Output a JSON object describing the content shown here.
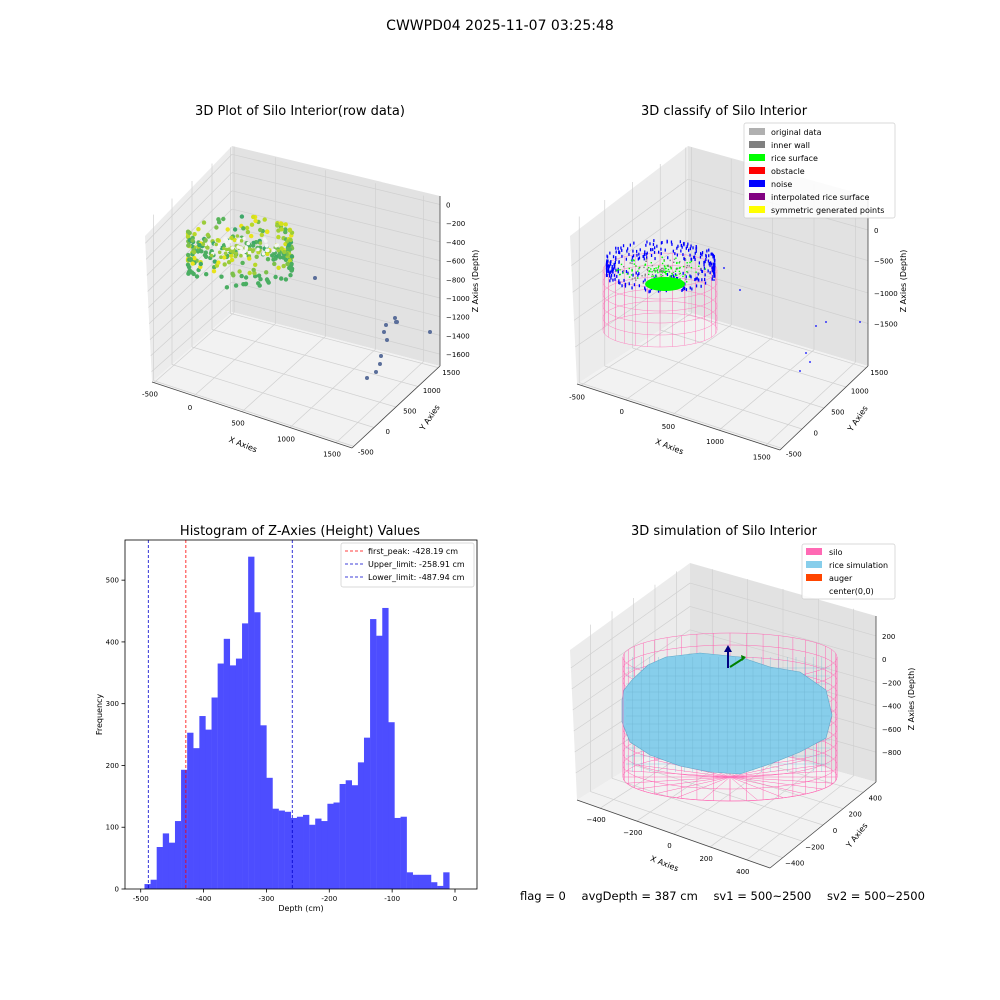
{
  "suptitle": "CWWPD04 2025-11-07 03:25:48",
  "status": {
    "flag": "flag = 0",
    "avg_depth": "avgDepth = 387 cm",
    "sv1": "sv1 = 500~2500",
    "sv2": "sv2 = 500~2500"
  },
  "colors": {
    "original": "#b0b0b0",
    "inner_wall": "#808080",
    "rice_surface": "#00ff00",
    "obstacle": "#ff0000",
    "noise": "#0000ff",
    "interpolated": "#800080",
    "symmetric": "#ffff00",
    "silo": "#ff69b4",
    "rice_sim": "#87ceeb",
    "auger": "#ff4500",
    "hist_bar": "#4d4dff"
  },
  "chart_data": [
    {
      "type": "scatter3d",
      "title": "3D Plot of Silo Interior(row data)",
      "xlabel": "X Axies",
      "ylabel": "Y Axies",
      "zlabel": "Z Axies (Depth)",
      "x_ticks": [
        "-500",
        "0",
        "500",
        "1000",
        "1500"
      ],
      "y_ticks": [
        "-500",
        "0",
        "500",
        "1000",
        "1500"
      ],
      "z_ticks": [
        "0",
        "−200",
        "−400",
        "−600",
        "−800",
        "−1000",
        "−1200",
        "−1400",
        "−1600"
      ]
    },
    {
      "type": "scatter3d",
      "title": "3D classify of Silo Interior",
      "xlabel": "X Axies",
      "ylabel": "Y Axies",
      "zlabel": "Z Axies (Depth)",
      "x_ticks": [
        "-500",
        "0",
        "500",
        "1000",
        "1500"
      ],
      "y_ticks": [
        "-500",
        "0",
        "500",
        "1000",
        "1500"
      ],
      "z_ticks": [
        "0",
        "−500",
        "−1000",
        "−1500"
      ],
      "legend": [
        {
          "label": "original data",
          "color": "#b0b0b0"
        },
        {
          "label": "inner wall",
          "color": "#808080"
        },
        {
          "label": "rice surface",
          "color": "#00ff00"
        },
        {
          "label": "obstacle",
          "color": "#ff0000"
        },
        {
          "label": "noise",
          "color": "#0000ff"
        },
        {
          "label": "interpolated rice surface",
          "color": "#800080"
        },
        {
          "label": "symmetric generated points",
          "color": "#ffff00"
        }
      ],
      "legend_position": "top-right"
    },
    {
      "type": "bar",
      "title": "Histogram of Z-Axies (Height) Values",
      "xlabel": "Depth (cm)",
      "ylabel": "Frequency",
      "xlim": [
        -525,
        35
      ],
      "ylim": [
        0,
        565
      ],
      "x_ticks": [
        -500,
        -400,
        -300,
        -200,
        -100,
        0
      ],
      "y_ticks": [
        0,
        100,
        200,
        300,
        400,
        500
      ],
      "bin_start": -494,
      "bin_width": 9.7,
      "values": [
        8,
        15,
        68,
        90,
        75,
        110,
        193,
        253,
        228,
        280,
        258,
        310,
        365,
        405,
        362,
        373,
        430,
        538,
        448,
        265,
        180,
        130,
        127,
        125,
        115,
        117,
        120,
        104,
        114,
        110,
        138,
        140,
        170,
        176,
        168,
        205,
        245,
        437,
        410,
        455,
        270,
        115,
        117,
        27,
        23,
        23,
        23,
        11,
        5,
        27
      ],
      "vlines": [
        {
          "label": "first_peak: -428.19 cm",
          "x": -428.19,
          "color": "#ff0000"
        },
        {
          "label": "Upper_limit: -258.91 cm",
          "x": -258.91,
          "color": "#0000cc"
        },
        {
          "label": "Lower_limit: -487.94 cm",
          "x": -487.94,
          "color": "#0000cc"
        }
      ],
      "legend_position": "top-right"
    },
    {
      "type": "surface3d",
      "title": "3D simulation of Silo Interior",
      "xlabel": "X Axies",
      "ylabel": "Y Axies",
      "zlabel": "Z Axies (Depth)",
      "x_ticks": [
        "−400",
        "−200",
        "0",
        "200",
        "400"
      ],
      "y_ticks": [
        "−400",
        "−200",
        "0",
        "200",
        "400"
      ],
      "z_ticks": [
        "200",
        "0",
        "−200",
        "−400",
        "−600",
        "−800"
      ],
      "legend": [
        {
          "label": "silo",
          "color": "#ff69b4"
        },
        {
          "label": "rice simulation",
          "color": "#87ceeb"
        },
        {
          "label": "auger",
          "color": "#ff4500"
        },
        {
          "label": "center(0,0)",
          "color": ""
        }
      ],
      "legend_position": "top-right"
    }
  ]
}
